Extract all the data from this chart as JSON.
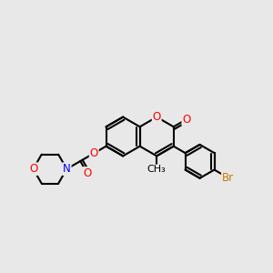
{
  "bg_color": "#e8e8e8",
  "bond_color": "#000000",
  "bond_width": 1.5,
  "atom_colors": {
    "O": "#ff0000",
    "N": "#0000ff",
    "Br": "#cc7700",
    "C": "#000000"
  },
  "font_size_atom": 8.5,
  "fig_width": 3.0,
  "fig_height": 3.0,
  "dpi": 100
}
